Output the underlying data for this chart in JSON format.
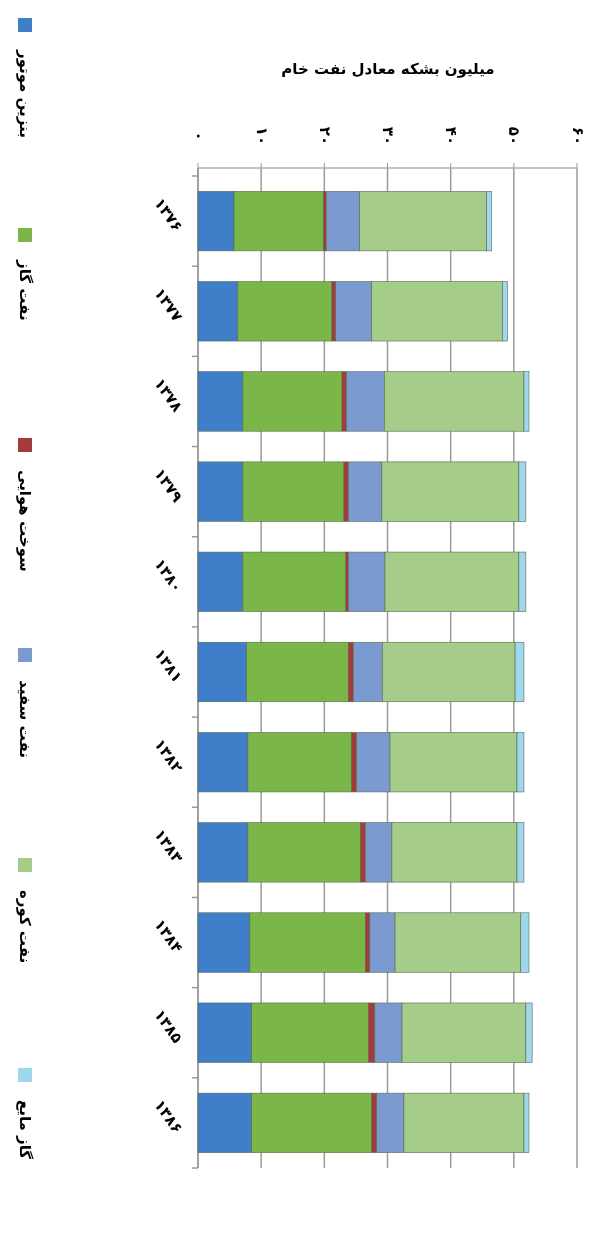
{
  "chart_data": {
    "type": "bar",
    "orientation": "horizontal",
    "stacked": true,
    "title": "میلیون بشکه معادل نفت خام",
    "categories": [
      "۱۳۷۶",
      "۱۳۷۷",
      "۱۳۷۸",
      "۱۳۷۹",
      "۱۳۸۰",
      "۱۳۸۱",
      "۱۳۸۲",
      "۱۳۸۳",
      "۱۳۸۴",
      "۱۳۸۵",
      "۱۳۸۶"
    ],
    "series": [
      {
        "name": "بنزین موتور",
        "color": "#3f7fca",
        "values": [
          5.7,
          6.3,
          7.1,
          7.1,
          7.1,
          7.7,
          7.9,
          7.9,
          8.2,
          8.5,
          8.5
        ]
      },
      {
        "name": "نفت گاز",
        "color": "#7ab648",
        "values": [
          14.2,
          14.9,
          15.7,
          16.0,
          16.3,
          16.1,
          16.4,
          17.8,
          18.3,
          18.5,
          19.0
        ]
      },
      {
        "name": "سوخت هوایی",
        "color": "#a33b3b",
        "values": [
          0.4,
          0.6,
          0.7,
          0.7,
          0.4,
          0.8,
          0.8,
          0.8,
          0.7,
          1.0,
          0.8
        ]
      },
      {
        "name": "نفت سفید",
        "color": "#7b9bd0",
        "values": [
          5.3,
          5.7,
          6.0,
          5.3,
          5.8,
          4.6,
          5.3,
          4.2,
          4.0,
          4.3,
          4.3
        ]
      },
      {
        "name": "نفت کوره",
        "color": "#a6cc8a",
        "values": [
          20.1,
          20.7,
          22.1,
          21.7,
          21.2,
          21.0,
          20.1,
          19.8,
          19.9,
          19.6,
          19.0
        ]
      },
      {
        "name": "گاز مایع",
        "color": "#9fd7ec",
        "values": [
          0.8,
          0.8,
          0.8,
          1.1,
          1.1,
          1.4,
          1.1,
          1.1,
          1.3,
          1.0,
          0.8
        ]
      }
    ],
    "xlim": [
      0,
      60
    ],
    "xticks": [
      {
        "value": 0,
        "label": "۰"
      },
      {
        "value": 10,
        "label": "۱۰"
      },
      {
        "value": 20,
        "label": "۲۰"
      },
      {
        "value": 30,
        "label": "۳۰"
      },
      {
        "value": 40,
        "label": "۴۰"
      },
      {
        "value": 50,
        "label": "۵۰"
      },
      {
        "value": 60,
        "label": "۶۰"
      }
    ],
    "grid": "x",
    "legend": "left"
  }
}
